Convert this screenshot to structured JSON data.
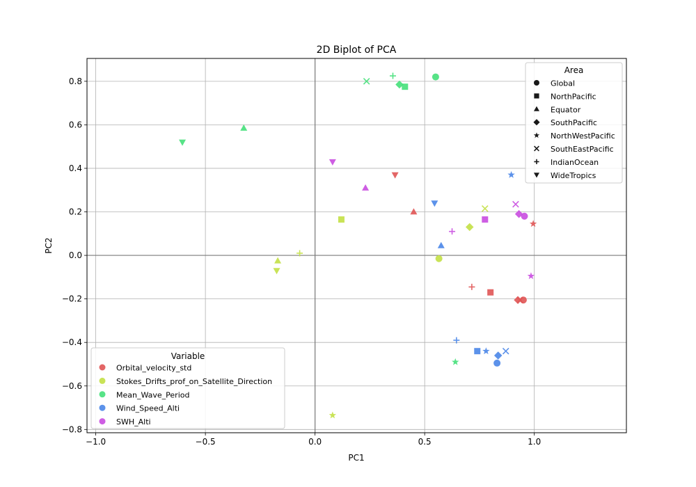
{
  "chart_data": {
    "type": "scatter",
    "title": "2D Biplot of PCA",
    "xlabel": "PC1",
    "ylabel": "PC2",
    "xlim": [
      -1.04,
      1.42
    ],
    "ylim": [
      -0.815,
      0.905
    ],
    "x_ticks": [
      -1.0,
      -0.5,
      0.0,
      0.5,
      1.0
    ],
    "x_tick_labels": [
      "−1.0",
      "−0.5",
      "0.0",
      "0.5",
      "1.0"
    ],
    "y_ticks": [
      -0.8,
      -0.6,
      -0.4,
      -0.2,
      0.0,
      0.2,
      0.4,
      0.6,
      0.8
    ],
    "y_tick_labels": [
      "−0.8",
      "−0.6",
      "−0.4",
      "−0.2",
      "0.0",
      "0.2",
      "0.4",
      "0.6",
      "0.8"
    ],
    "grid": true,
    "reference_lines": {
      "x": 0,
      "y": 0
    },
    "legend_area": {
      "title": "Area",
      "placement": "upper-right",
      "entries": [
        {
          "name": "Global",
          "marker": "circle"
        },
        {
          "name": "NorthPacific",
          "marker": "square"
        },
        {
          "name": "Equator",
          "marker": "triangle-up"
        },
        {
          "name": "SouthPacific",
          "marker": "diamond"
        },
        {
          "name": "NorthWestPacific",
          "marker": "star"
        },
        {
          "name": "SouthEastPacific",
          "marker": "x"
        },
        {
          "name": "IndianOcean",
          "marker": "plus"
        },
        {
          "name": "WideTropics",
          "marker": "triangle-down"
        }
      ]
    },
    "legend_variable": {
      "title": "Variable",
      "placement": "lower-left",
      "entries": [
        {
          "name": "Orbital_velocity_std",
          "color": "#e05555"
        },
        {
          "name": "Stokes_Drifts_prof_on_Satellite_Direction",
          "color": "#c3e045"
        },
        {
          "name": "Mean_Wave_Period",
          "color": "#45e07a"
        },
        {
          "name": "Wind_Speed_Alti",
          "color": "#4a86e8"
        },
        {
          "name": "SWH_Alti",
          "color": "#c94de0"
        }
      ]
    },
    "series": [
      {
        "name": "Orbital_velocity_std",
        "color": "#e05555",
        "points": [
          {
            "area": "Global",
            "x": 0.95,
            "y": -0.205
          },
          {
            "area": "NorthPacific",
            "x": 0.8,
            "y": -0.17
          },
          {
            "area": "Equator",
            "x": 0.45,
            "y": 0.2
          },
          {
            "area": "SouthPacific",
            "x": 0.925,
            "y": -0.205
          },
          {
            "area": "NorthWestPacific",
            "x": 0.995,
            "y": 0.145
          },
          {
            "area": "SouthEastPacific",
            "x": 0.935,
            "y": -0.205
          },
          {
            "area": "IndianOcean",
            "x": 0.715,
            "y": -0.145
          },
          {
            "area": "WideTropics",
            "x": 0.365,
            "y": 0.37
          }
        ]
      },
      {
        "name": "Stokes_Drifts_prof_on_Satellite_Direction",
        "color": "#c3e045",
        "points": [
          {
            "area": "Global",
            "x": 0.565,
            "y": -0.015
          },
          {
            "area": "NorthPacific",
            "x": 0.12,
            "y": 0.165
          },
          {
            "area": "Equator",
            "x": -0.17,
            "y": -0.025
          },
          {
            "area": "SouthPacific",
            "x": 0.705,
            "y": 0.13
          },
          {
            "area": "NorthWestPacific",
            "x": 0.08,
            "y": -0.735
          },
          {
            "area": "SouthEastPacific",
            "x": 0.775,
            "y": 0.215
          },
          {
            "area": "IndianOcean",
            "x": -0.07,
            "y": 0.01
          },
          {
            "area": "WideTropics",
            "x": -0.175,
            "y": -0.07
          }
        ]
      },
      {
        "name": "Mean_Wave_Period",
        "color": "#45e07a",
        "points": [
          {
            "area": "Global",
            "x": 0.55,
            "y": 0.82
          },
          {
            "area": "NorthPacific",
            "x": 0.41,
            "y": 0.775
          },
          {
            "area": "Equator",
            "x": -0.325,
            "y": 0.585
          },
          {
            "area": "SouthPacific",
            "x": 0.385,
            "y": 0.785
          },
          {
            "area": "NorthWestPacific",
            "x": 0.64,
            "y": -0.49
          },
          {
            "area": "SouthEastPacific",
            "x": 0.235,
            "y": 0.8
          },
          {
            "area": "IndianOcean",
            "x": 0.355,
            "y": 0.825
          },
          {
            "area": "WideTropics",
            "x": -0.605,
            "y": 0.52
          }
        ]
      },
      {
        "name": "Wind_Speed_Alti",
        "color": "#4a86e8",
        "points": [
          {
            "area": "Global",
            "x": 0.83,
            "y": -0.495
          },
          {
            "area": "NorthPacific",
            "x": 0.74,
            "y": -0.44
          },
          {
            "area": "Equator",
            "x": 0.575,
            "y": 0.045
          },
          {
            "area": "SouthPacific",
            "x": 0.835,
            "y": -0.46
          },
          {
            "area": "NorthWestPacific",
            "x": 0.78,
            "y": -0.44
          },
          {
            "area": "SouthEastPacific",
            "x": 0.87,
            "y": -0.44
          },
          {
            "area": "IndianOcean",
            "x": 0.645,
            "y": -0.39
          },
          {
            "area": "WideTropics",
            "x": 0.545,
            "y": 0.24
          },
          {
            "area": "NorthWestPacific",
            "x": 0.895,
            "y": 0.37
          }
        ]
      },
      {
        "name": "SWH_Alti",
        "color": "#c94de0",
        "points": [
          {
            "area": "Global",
            "x": 0.955,
            "y": 0.18
          },
          {
            "area": "NorthPacific",
            "x": 0.775,
            "y": 0.165
          },
          {
            "area": "Equator",
            "x": 0.23,
            "y": 0.31
          },
          {
            "area": "SouthPacific",
            "x": 0.93,
            "y": 0.19
          },
          {
            "area": "NorthWestPacific",
            "x": 0.985,
            "y": -0.095
          },
          {
            "area": "SouthEastPacific",
            "x": 0.915,
            "y": 0.235
          },
          {
            "area": "IndianOcean",
            "x": 0.625,
            "y": 0.11
          },
          {
            "area": "WideTropics",
            "x": 0.08,
            "y": 0.43
          }
        ]
      }
    ]
  }
}
